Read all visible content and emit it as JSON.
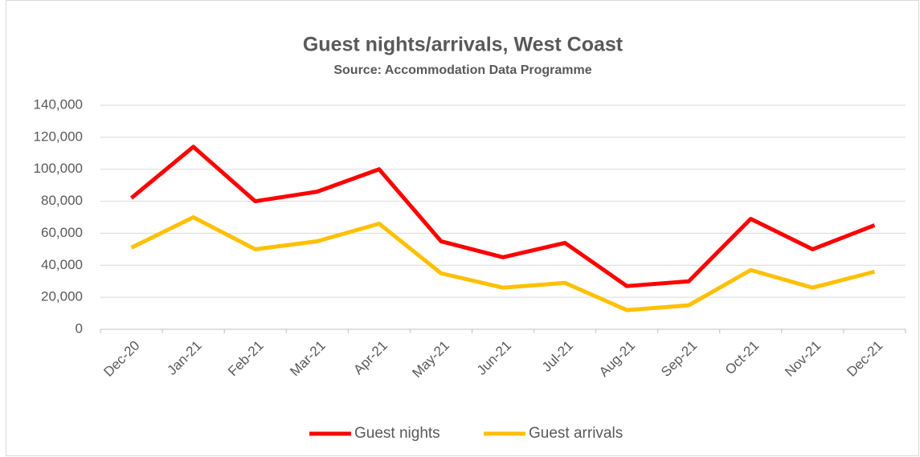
{
  "chart_data": {
    "type": "line",
    "title": "Guest nights/arrivals, West Coast",
    "subtitle": "Source: Accommodation Data Programme",
    "categories": [
      "Dec-20",
      "Jan-21",
      "Feb-21",
      "Mar-21",
      "Apr-21",
      "May-21",
      "Jun-21",
      "Jul-21",
      "Aug-21",
      "Sep-21",
      "Oct-21",
      "Nov-21",
      "Dec-21"
    ],
    "series": [
      {
        "name": "Guest nights",
        "color": "#ff0000",
        "values": [
          82000,
          114000,
          80000,
          86000,
          100000,
          55000,
          45000,
          54000,
          27000,
          30000,
          69000,
          50000,
          65000
        ]
      },
      {
        "name": "Guest arrivals",
        "color": "#ffc000",
        "values": [
          51000,
          70000,
          50000,
          55000,
          66000,
          35000,
          26000,
          29000,
          12000,
          15000,
          37000,
          26000,
          36000
        ]
      }
    ],
    "ylim": [
      0,
      140000
    ],
    "yticks": [
      0,
      {
        "value": 20000,
        "label": "20,000"
      },
      {
        "value": 40000,
        "label": "40,000"
      },
      {
        "value": 60000,
        "label": "60,000"
      },
      {
        "value": 80000,
        "label": "80,000"
      },
      {
        "value": 100000,
        "label": "100,000"
      },
      {
        "value": 120000,
        "label": "120,000"
      },
      {
        "value": 140000,
        "label": "140,000"
      }
    ],
    "grid": true,
    "legend": "bottom"
  }
}
